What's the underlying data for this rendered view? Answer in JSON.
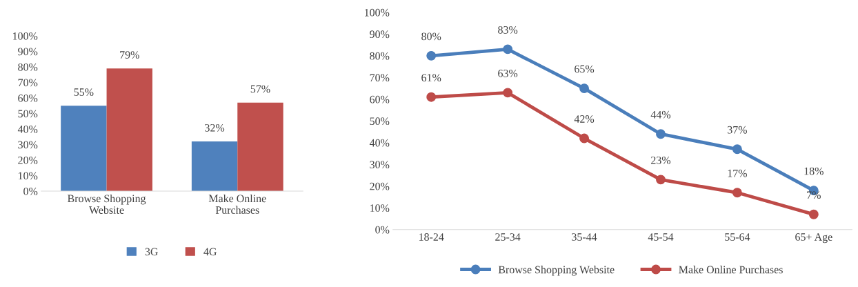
{
  "chart_data": [
    {
      "type": "bar",
      "categories": [
        "Browse Shopping\nWebsite",
        "Make Online\nPurchases"
      ],
      "series": [
        {
          "name": "3G",
          "color": "#4f81bd",
          "values": [
            55,
            32
          ],
          "value_labels": [
            "55%",
            "32%"
          ]
        },
        {
          "name": "4G",
          "color": "#c0504d",
          "values": [
            79,
            57
          ],
          "value_labels": [
            "79%",
            "57%"
          ]
        }
      ],
      "ylim": [
        0,
        100
      ],
      "yticks": [
        {
          "value": 0,
          "label": "0%"
        },
        {
          "value": 10,
          "label": "10%"
        },
        {
          "value": 20,
          "label": "20%"
        },
        {
          "value": 30,
          "label": "30%"
        },
        {
          "value": 40,
          "label": "40%"
        },
        {
          "value": 50,
          "label": "50%"
        },
        {
          "value": 60,
          "label": "60%"
        },
        {
          "value": 70,
          "label": "70%"
        },
        {
          "value": 80,
          "label": "80%"
        },
        {
          "value": 90,
          "label": "90%"
        },
        {
          "value": 100,
          "label": "100%"
        }
      ],
      "grid": false,
      "legend": "bottom"
    },
    {
      "type": "line",
      "categories": [
        "18-24",
        "25-34",
        "35-44",
        "45-54",
        "55-64",
        "65+ Age"
      ],
      "series": [
        {
          "name": "Browse Shopping Website",
          "color": "#4a7ebb",
          "values": [
            80,
            83,
            65,
            44,
            37,
            18
          ],
          "value_labels": [
            "80%",
            "83%",
            "65%",
            "44%",
            "37%",
            "18%"
          ]
        },
        {
          "name": "Make Online Purchases",
          "color": "#be4b48",
          "values": [
            61,
            63,
            42,
            23,
            17,
            7
          ],
          "value_labels": [
            "61%",
            "63%",
            "42%",
            "23%",
            "17%",
            "7%"
          ]
        }
      ],
      "ylim": [
        0,
        100
      ],
      "yticks": [
        {
          "value": 0,
          "label": "0%"
        },
        {
          "value": 10,
          "label": "10%"
        },
        {
          "value": 20,
          "label": "20%"
        },
        {
          "value": 30,
          "label": "30%"
        },
        {
          "value": 40,
          "label": "40%"
        },
        {
          "value": 50,
          "label": "50%"
        },
        {
          "value": 60,
          "label": "60%"
        },
        {
          "value": 70,
          "label": "70%"
        },
        {
          "value": 80,
          "label": "80%"
        },
        {
          "value": 90,
          "label": "90%"
        },
        {
          "value": 100,
          "label": "100%"
        }
      ],
      "grid": false,
      "legend": "bottom",
      "marker": "circle",
      "line_style": "solid"
    }
  ]
}
